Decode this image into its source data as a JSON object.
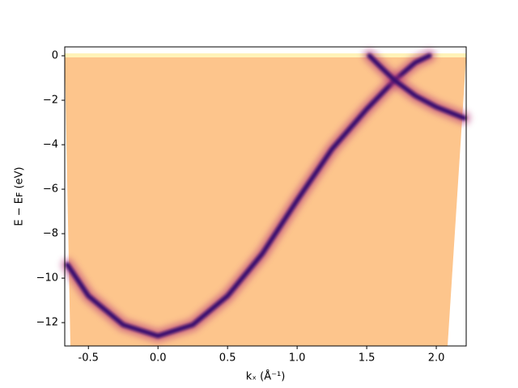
{
  "chart_data": {
    "type": "line",
    "xlabel": "kₓ (Å⁻¹)",
    "ylabel": "E − Eꜰ (eV)",
    "xlim": [
      -0.67,
      2.215
    ],
    "ylim": [
      -13.05,
      0.4
    ],
    "xticks": [
      -0.5,
      {
        "value": 0,
        "label": "0.0"
      },
      0.5,
      {
        "value": 1,
        "label": "1.0"
      },
      1.5,
      {
        "value": 2,
        "label": "2.0"
      }
    ],
    "yticks": [
      0,
      {
        "value": -2,
        "label": "−2"
      },
      {
        "value": -4,
        "label": "−4"
      },
      {
        "value": -6,
        "label": "−6"
      },
      {
        "value": -8,
        "label": "−8"
      },
      {
        "value": -10,
        "label": "−10"
      },
      {
        "value": -12,
        "label": "−12"
      }
    ],
    "series": [
      {
        "color": "#3b0f70",
        "x": [
          -0.65,
          -0.5,
          -0.25,
          0,
          0.25,
          0.5,
          0.75,
          1.0,
          1.25,
          1.5,
          1.7,
          1.85,
          1.95
        ],
        "values": [
          -9.4,
          -10.8,
          -12.1,
          -12.6,
          -12.1,
          -10.8,
          -8.9,
          -6.5,
          -4.2,
          -2.4,
          -1.1,
          -0.3,
          0
        ]
      },
      {
        "color": "#3b0f70",
        "x": [
          1.52,
          1.6,
          1.7,
          1.85,
          2.0,
          2.2
        ],
        "values": [
          0,
          -0.5,
          -1.1,
          -1.8,
          -2.3,
          -2.8
        ]
      }
    ]
  }
}
